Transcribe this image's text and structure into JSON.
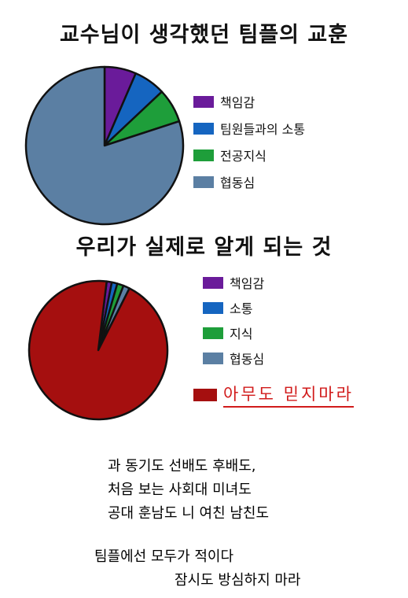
{
  "chart_data": [
    {
      "type": "pie",
      "title": "교수님이 생각했던 팀플의 교훈",
      "categories": [
        "책임감",
        "팀원들과의 소통",
        "전공지식",
        "협동심"
      ],
      "values": [
        6.5,
        6.5,
        7,
        80
      ],
      "colors": [
        "#6a1b9a",
        "#1565c0",
        "#1e9e3a",
        "#5b7fa3"
      ],
      "legend_position": "right"
    },
    {
      "type": "pie",
      "title": "우리가 실제로 알게 되는 것",
      "categories": [
        "책임감",
        "소통",
        "지식",
        "협동심",
        "아무도 믿지마라"
      ],
      "values": [
        1.2,
        1.3,
        1.5,
        1.5,
        94.5
      ],
      "colors": [
        "#6a1b9a",
        "#1565c0",
        "#1e9e3a",
        "#5b7fa3",
        "#a50f0f"
      ],
      "legend_position": "right"
    }
  ],
  "caption": {
    "lines": [
      "과 동기도 선배도 후배도,",
      "처음 보는 사회대 미녀도",
      "공대 훈남도 니 여친 남친도",
      "팀플에선 모두가 적이다",
      "잠시도 방심하지 마라"
    ]
  }
}
